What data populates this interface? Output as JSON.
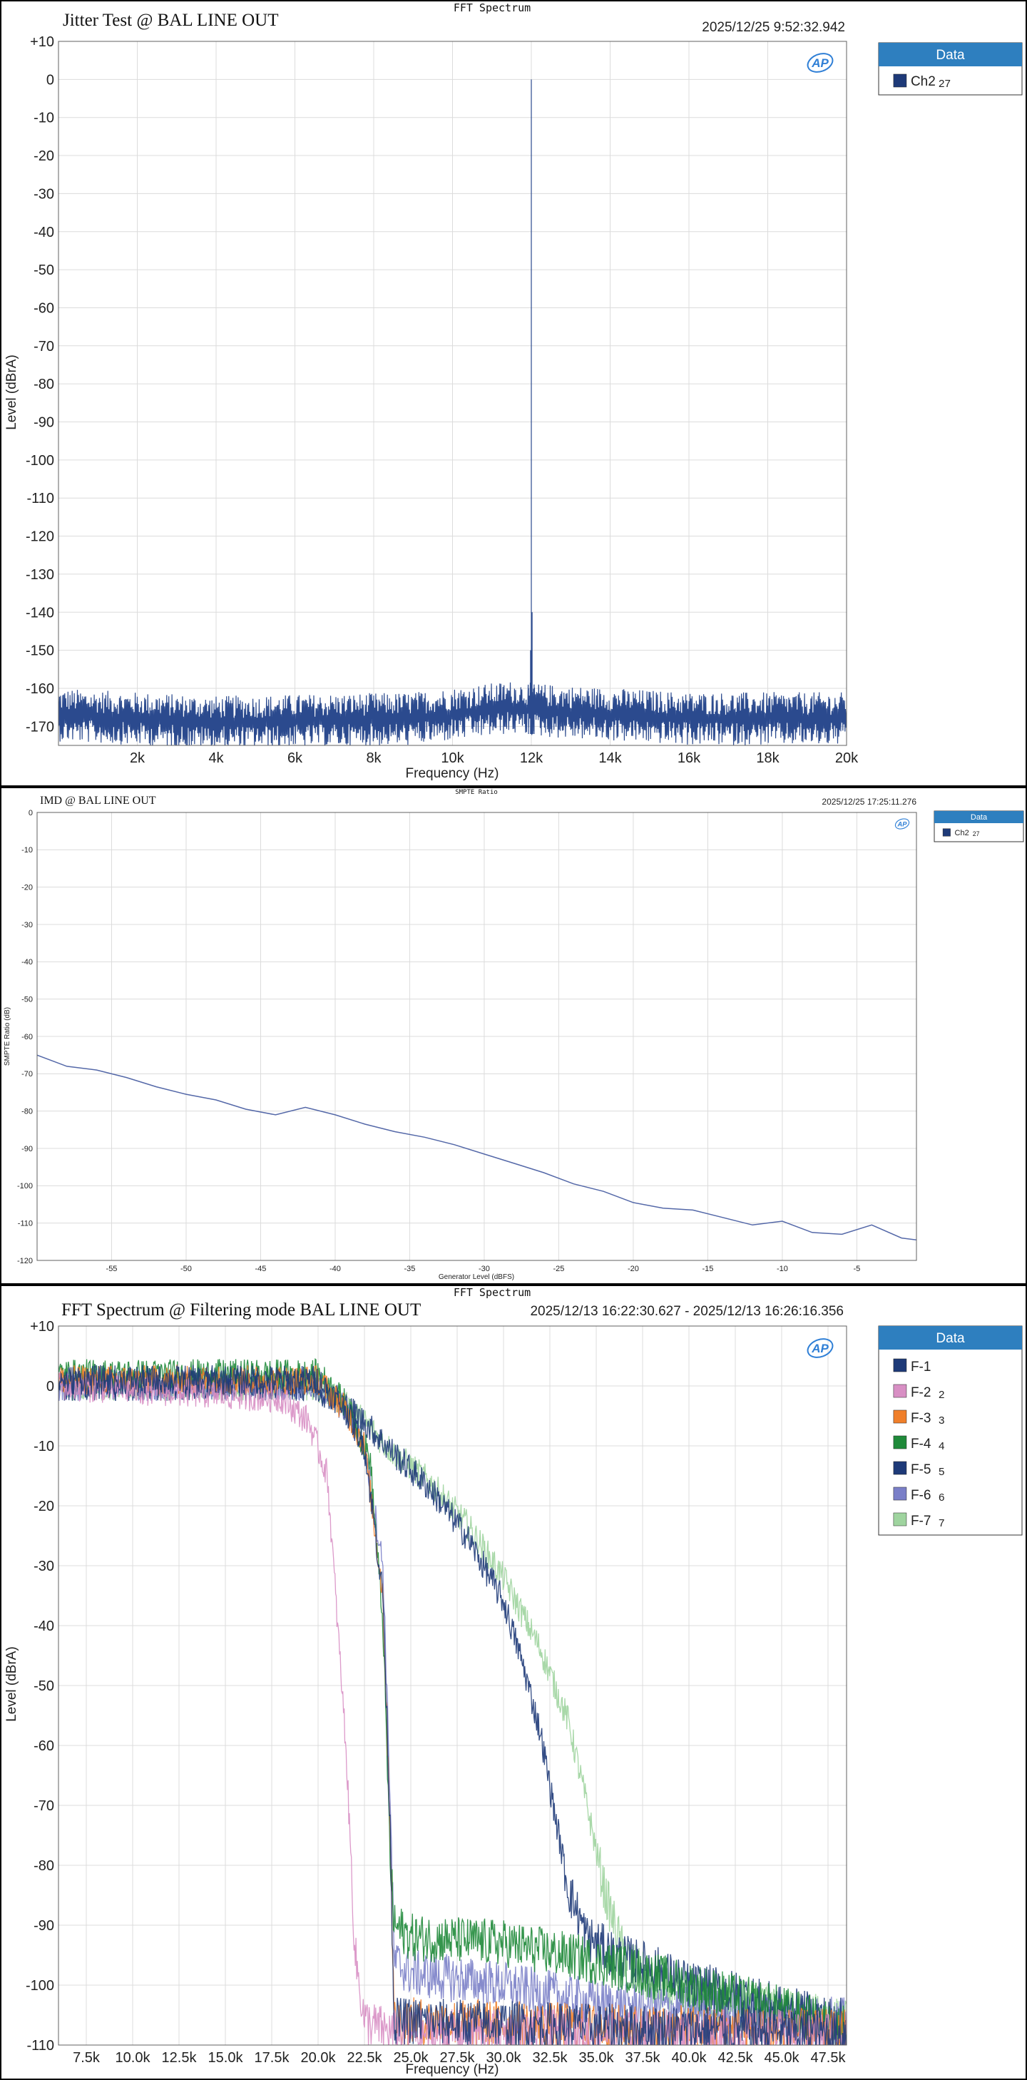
{
  "chart_data": [
    {
      "type": "line",
      "header": "FFT Spectrum",
      "title": "Jitter Test @ BAL LINE OUT",
      "timestamp": "2025/12/25 9:52:32.942",
      "xlabel": "Frequency (Hz)",
      "ylabel": "Level (dBrA)",
      "xlim": [
        0,
        20000
      ],
      "ylim": [
        -175,
        10
      ],
      "x_ticks": [
        2000,
        4000,
        6000,
        8000,
        10000,
        12000,
        14000,
        16000,
        18000,
        20000
      ],
      "x_tick_labels": [
        "2k",
        "4k",
        "6k",
        "8k",
        "10k",
        "12k",
        "14k",
        "16k",
        "18k",
        "20k"
      ],
      "y_ticks": [
        10,
        0,
        -10,
        -20,
        -30,
        -40,
        -50,
        -60,
        -70,
        -80,
        -90,
        -100,
        -110,
        -120,
        -130,
        -140,
        -150,
        -160,
        -170
      ],
      "y_tick_labels": [
        "+10",
        "0",
        "-10",
        "-20",
        "-30",
        "-40",
        "-50",
        "-60",
        "-70",
        "-80",
        "-90",
        "-100",
        "-110",
        "-120",
        "-130",
        "-140",
        "-150",
        "-160",
        "-170"
      ],
      "grid": true,
      "legend": {
        "title": "Data",
        "placement": "right",
        "entries": [
          {
            "name": "Ch2",
            "index": "27",
            "color": "#1e3a78"
          }
        ]
      },
      "series": [
        {
          "name": "Ch2",
          "color": "#2b4a8e",
          "noise_floor": [
            [
              0,
              -166
            ],
            [
              4000,
              -168
            ],
            [
              9000,
              -167
            ],
            [
              11500,
              -164
            ],
            [
              12500,
              -165
            ],
            [
              16000,
              -167
            ],
            [
              20000,
              -167
            ]
          ],
          "peaks": [
            [
              11980,
              -150
            ],
            [
              12000,
              0
            ],
            [
              12020,
              -140
            ],
            [
              11930,
              -160
            ],
            [
              12070,
              -159
            ]
          ]
        }
      ]
    },
    {
      "type": "line",
      "header": "SMPTE Ratio",
      "title": "IMD @ BAL LINE OUT",
      "timestamp": "2025/12/25 17:25:11.276",
      "xlabel": "Generator Level (dBFS)",
      "ylabel": "SMPTE Ratio (dB)",
      "xlim": [
        -60,
        -1
      ],
      "ylim": [
        -120,
        0
      ],
      "x_ticks": [
        -55,
        -50,
        -45,
        -40,
        -35,
        -30,
        -25,
        -20,
        -15,
        -10,
        -5
      ],
      "x_tick_labels": [
        "-55",
        "-50",
        "-45",
        "-40",
        "-35",
        "-30",
        "-25",
        "-20",
        "-15",
        "-10",
        "-5"
      ],
      "y_ticks": [
        0,
        -10,
        -20,
        -30,
        -40,
        -50,
        -60,
        -70,
        -80,
        -90,
        -100,
        -110,
        -120
      ],
      "y_tick_labels": [
        "0",
        "-10",
        "-20",
        "-30",
        "-40",
        "-50",
        "-60",
        "-70",
        "-80",
        "-90",
        "-100",
        "-110",
        "-120"
      ],
      "grid": true,
      "legend": {
        "title": "Data",
        "placement": "right",
        "entries": [
          {
            "name": "Ch2",
            "index": "27",
            "color": "#1e3a78"
          }
        ]
      },
      "series": [
        {
          "name": "Ch2",
          "color": "#5468a8",
          "x": [
            -60,
            -58,
            -56,
            -54,
            -52,
            -50,
            -48,
            -46,
            -44,
            -42,
            -40,
            -38,
            -36,
            -34,
            -32,
            -30,
            -28,
            -26,
            -24,
            -22,
            -20,
            -18,
            -16,
            -14,
            -12,
            -10,
            -8,
            -6,
            -4,
            -2,
            -1
          ],
          "y": [
            -65,
            -68,
            -69,
            -71,
            -73.5,
            -75.5,
            -77,
            -79.5,
            -81,
            -79,
            -81,
            -83.5,
            -85.5,
            -87,
            -89,
            -91.5,
            -94,
            -96.5,
            -99.5,
            -101.5,
            -104.5,
            -106,
            -106.5,
            -108.5,
            -110.5,
            -109.5,
            -112.5,
            -113,
            -110.5,
            -114,
            -114.5
          ]
        }
      ]
    },
    {
      "type": "line",
      "header": "FFT Spectrum",
      "title": "FFT Spectrum @ Filtering mode BAL LINE OUT",
      "timestamp": "2025/12/13 16:22:30.627 - 2025/12/13 16:26:16.356",
      "xlabel": "Frequency (Hz)",
      "ylabel": "Level (dBrA)",
      "xlim": [
        6000,
        48500
      ],
      "ylim": [
        -110,
        10
      ],
      "x_ticks": [
        7500,
        10000,
        12500,
        15000,
        17500,
        20000,
        22500,
        25000,
        27500,
        30000,
        32500,
        35000,
        37500,
        40000,
        42500,
        45000,
        47500
      ],
      "x_tick_labels": [
        "7.5k",
        "10.0k",
        "12.5k",
        "15.0k",
        "17.5k",
        "20.0k",
        "22.5k",
        "25.0k",
        "27.5k",
        "30.0k",
        "32.5k",
        "35.0k",
        "37.5k",
        "40.0k",
        "42.5k",
        "45.0k",
        "47.5k"
      ],
      "y_ticks": [
        10,
        0,
        -10,
        -20,
        -30,
        -40,
        -50,
        -60,
        -70,
        -80,
        -90,
        -100,
        -110
      ],
      "y_tick_labels": [
        "+10",
        "0",
        "-10",
        "-20",
        "-30",
        "-40",
        "-50",
        "-60",
        "-70",
        "-80",
        "-90",
        "-100",
        "-110"
      ],
      "grid": true,
      "legend": {
        "title": "Data",
        "placement": "right",
        "entries": [
          {
            "name": "F-1",
            "index": "",
            "color": "#1e3a78"
          },
          {
            "name": "F-2",
            "index": "2",
            "color": "#d88fc4"
          },
          {
            "name": "F-3",
            "index": "3",
            "color": "#f07f2a"
          },
          {
            "name": "F-4",
            "index": "4",
            "color": "#1f8a3a"
          },
          {
            "name": "F-5",
            "index": "5",
            "color": "#1e3a78"
          },
          {
            "name": "F-6",
            "index": "6",
            "color": "#7a7fc8"
          },
          {
            "name": "F-7",
            "index": "7",
            "color": "#9fd49f"
          }
        ]
      },
      "series": [
        {
          "name": "F-7",
          "color": "#9fd49f",
          "x": [
            6000,
            19500,
            21000,
            22500,
            24000,
            26000,
            28000,
            30000,
            32000,
            33500,
            34500,
            35500,
            36500,
            38000,
            41000,
            44000,
            48000
          ],
          "y": [
            0,
            0,
            -2,
            -6,
            -11,
            -16,
            -23,
            -32,
            -44,
            -56,
            -70,
            -85,
            -95,
            -100,
            -103,
            -104,
            -106
          ]
        },
        {
          "name": "F-6",
          "color": "#7a7fc8",
          "x": [
            6000,
            20000,
            21500,
            22500,
            23500,
            23900,
            24100,
            25000,
            30000,
            35000,
            40000,
            45000,
            48000
          ],
          "y": [
            0,
            0,
            -4,
            -10,
            -30,
            -70,
            -96,
            -98,
            -100,
            -103,
            -104,
            -105,
            -106
          ]
        },
        {
          "name": "F-5",
          "color": "#1e3a78",
          "x": [
            6000,
            19500,
            21000,
            22500,
            24000,
            26000,
            28000,
            30000,
            31000,
            32000,
            32800,
            33500,
            34500,
            36000,
            38000,
            40000,
            42000,
            45000,
            48000
          ],
          "y": [
            0,
            0,
            -2,
            -6,
            -11,
            -17,
            -25,
            -36,
            -46,
            -58,
            -72,
            -84,
            -92,
            -95,
            -97,
            -100,
            -101,
            -104,
            -106
          ]
        },
        {
          "name": "F-4",
          "color": "#1f8a3a",
          "x": [
            6000,
            20000,
            21500,
            22800,
            23500,
            23900,
            24100,
            25000,
            30000,
            35000,
            40000,
            45000,
            48000
          ],
          "y": [
            2,
            2,
            -3,
            -12,
            -40,
            -80,
            -90,
            -92,
            -93,
            -96,
            -100,
            -104,
            -107
          ]
        },
        {
          "name": "F-3",
          "color": "#f07f2a",
          "x": [
            6000,
            20000,
            21500,
            22500,
            23500,
            23900,
            24100,
            25000,
            35000,
            48000
          ],
          "y": [
            1,
            1,
            -4,
            -10,
            -35,
            -75,
            -106,
            -106,
            -107,
            -108
          ]
        },
        {
          "name": "F-2",
          "color": "#d88fc4",
          "x": [
            6000,
            18000,
            19500,
            20500,
            21500,
            22000,
            22500,
            23200,
            24000
          ],
          "y": [
            0,
            -2,
            -6,
            -15,
            -60,
            -95,
            -106,
            -107,
            -108
          ]
        },
        {
          "name": "F-1",
          "color": "#1e3a78",
          "x": [
            6000,
            20000,
            21500,
            22500,
            23500,
            23900,
            24100,
            25000,
            35000,
            48000
          ],
          "y": [
            1,
            1,
            -4,
            -10,
            -35,
            -75,
            -106,
            -106,
            -107,
            -108
          ]
        }
      ]
    }
  ]
}
